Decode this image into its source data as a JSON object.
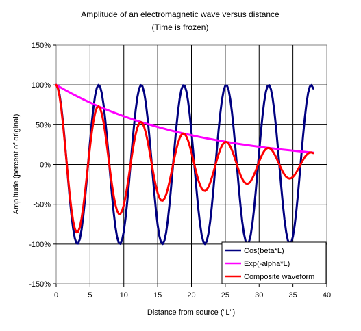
{
  "chart_data": {
    "type": "line",
    "title": "Amplitude of an electromagnetic wave versus distance",
    "subtitle": "(Time is frozen)",
    "xlabel": "Distance from source (\"L\")",
    "ylabel": "Amplitude (percent of original)",
    "xlim": [
      0,
      40
    ],
    "ylim": [
      -150,
      150
    ],
    "x_ticks": [
      "0",
      "5",
      "10",
      "15",
      "20",
      "25",
      "30",
      "35",
      "40"
    ],
    "y_ticks": [
      "150%",
      "100%",
      "50%",
      "0%",
      "-50%",
      "-100%",
      "-150%"
    ],
    "grid": true,
    "legend_position": "bottom-right",
    "x_start": 0,
    "x_end": 38,
    "x_step": 0.25,
    "series": [
      {
        "name": "Cos(beta*L)",
        "color": "#000080",
        "formula": "100*cos(L)",
        "beta": 1,
        "alpha": 0.05
      },
      {
        "name": "Exp(-alpha*L)",
        "color": "#ff00ff",
        "formula": "100*exp(-0.05*L)",
        "beta": 1,
        "alpha": 0.05
      },
      {
        "name": "Composite waveform",
        "color": "#ff0000",
        "formula": "100*exp(-0.05*L)*cos(L)",
        "beta": 1,
        "alpha": 0.05
      }
    ]
  }
}
